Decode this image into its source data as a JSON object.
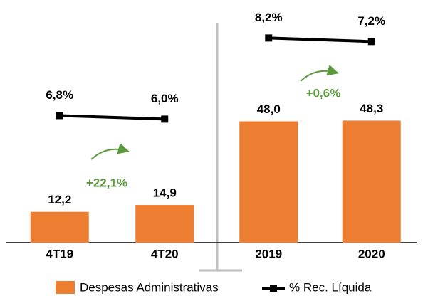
{
  "chart_data": [
    {
      "type": "bar",
      "categories": [
        "4T19",
        "4T20"
      ],
      "series": [
        {
          "name": "Despesas Administrativas",
          "color": "#ed7d31",
          "values": [
            12.2,
            14.9
          ],
          "value_labels": [
            "12,2",
            "14,9"
          ]
        },
        {
          "name": "% Rec. Líquida",
          "type": "line",
          "axis": "y2",
          "color": "#000000",
          "values": [
            6.8,
            6.0
          ],
          "value_labels": [
            "6,8%",
            "6,0%"
          ]
        }
      ],
      "annotation": "+22,1%",
      "ylim": [
        0,
        96
      ],
      "y2lim": [
        -22,
        33
      ]
    },
    {
      "type": "bar",
      "categories": [
        "2019",
        "2020"
      ],
      "series": [
        {
          "name": "Despesas Administrativas",
          "color": "#ed7d31",
          "values": [
            48.0,
            48.3
          ],
          "value_labels": [
            "48,0",
            "48,3"
          ]
        },
        {
          "name": "% Rec. Líquida",
          "type": "line",
          "axis": "y2",
          "color": "#000000",
          "values": [
            8.2,
            7.2
          ],
          "value_labels": [
            "8,2%",
            "7,2%"
          ]
        }
      ],
      "annotation": "+0,6%",
      "ylim": [
        0,
        96
      ],
      "y2lim": [
        -50,
        19
      ]
    }
  ]
}
